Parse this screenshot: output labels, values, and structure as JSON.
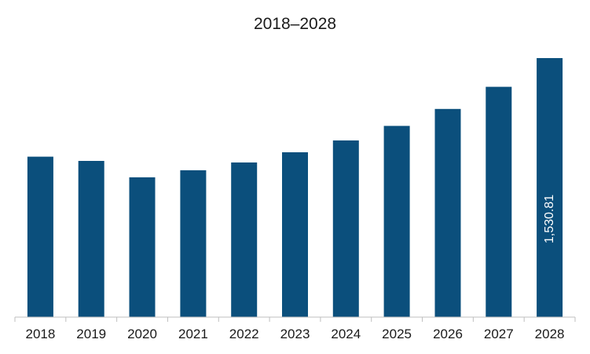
{
  "chart_data": {
    "type": "bar",
    "title": "2018–2028",
    "xlabel": "",
    "ylabel": "",
    "categories": [
      "2018",
      "2019",
      "2020",
      "2021",
      "2022",
      "2023",
      "2024",
      "2025",
      "2026",
      "2027",
      "2028"
    ],
    "values": [
      948,
      923,
      826,
      868,
      914,
      974,
      1044,
      1130,
      1230,
      1361,
      1530.81
    ],
    "data_labels": [
      {
        "category": "2028",
        "text": "1,530.81"
      }
    ],
    "ylim": [
      0,
      1530.81
    ],
    "grid": false,
    "legend": "none",
    "bar_color": "#0b4f7c",
    "axis_color": "#bfbfbf"
  }
}
